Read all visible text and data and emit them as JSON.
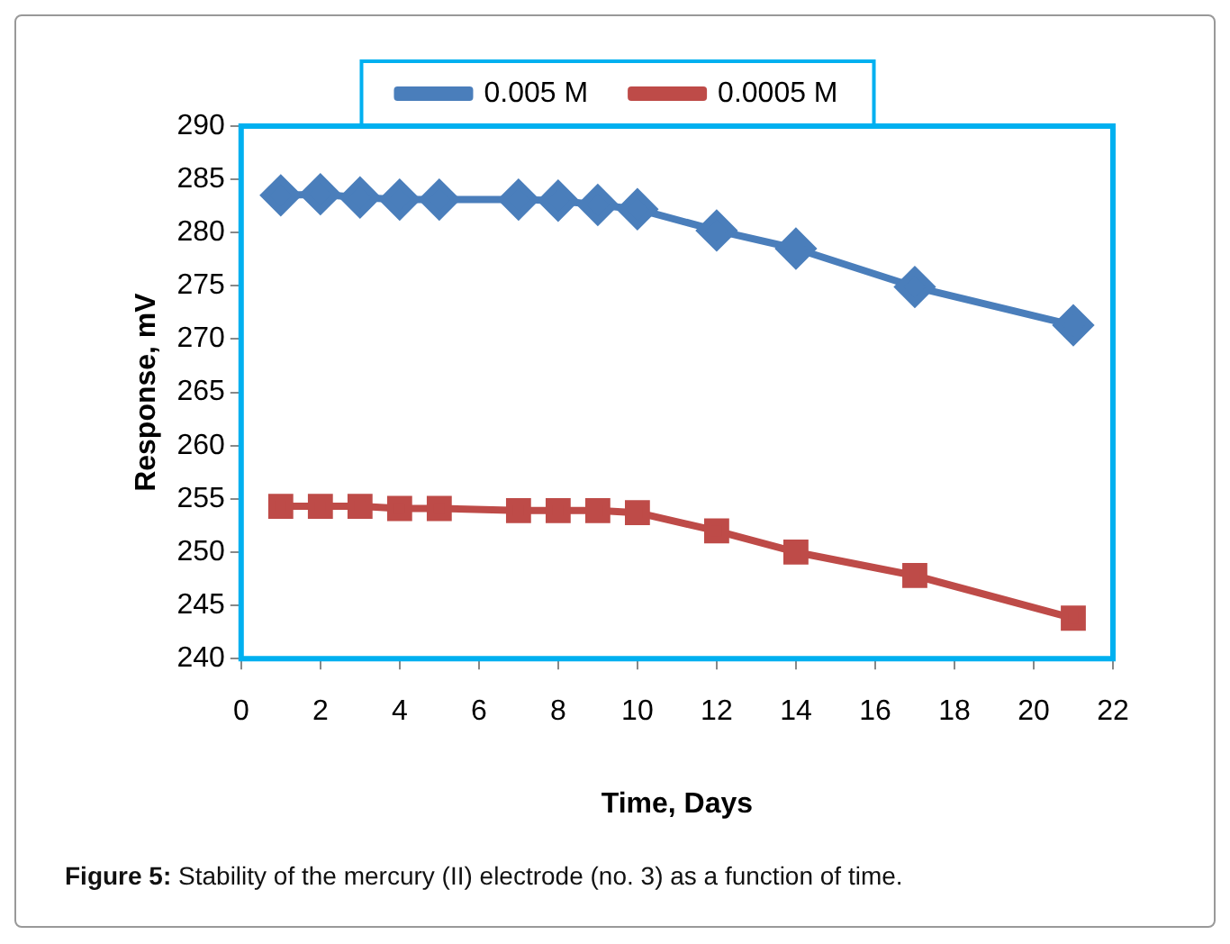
{
  "chart_data": {
    "type": "line",
    "xlabel": "Time, Days",
    "ylabel": "Response, mV",
    "annotations": [
      "Figure 5: Stability of the mercury (II) electrode (no. 3) as a function of time."
    ],
    "x": [
      1,
      2,
      3,
      4,
      5,
      7,
      8,
      9,
      10,
      12,
      14,
      17,
      21
    ],
    "series": [
      {
        "name": "0.005 M",
        "color": "#4a7ebb",
        "marker": "diamond",
        "values": [
          283.5,
          283.6,
          283.3,
          283.1,
          283.1,
          283.1,
          283.0,
          282.6,
          282.2,
          280.2,
          278.5,
          274.9,
          271.3
        ]
      },
      {
        "name": "0.0005 M",
        "color": "#be4b48",
        "marker": "square",
        "values": [
          254.3,
          254.3,
          254.3,
          254.1,
          254.1,
          253.9,
          253.9,
          253.9,
          253.7,
          252.0,
          250.0,
          247.8,
          243.8
        ]
      }
    ],
    "xlim": [
      0,
      22
    ],
    "xticks": [
      0,
      2,
      4,
      6,
      8,
      10,
      12,
      14,
      16,
      18,
      20,
      22
    ],
    "ylim": [
      240,
      290
    ],
    "yticks": [
      240,
      245,
      250,
      255,
      260,
      265,
      270,
      275,
      280,
      285,
      290
    ],
    "grid": false,
    "legend": "top",
    "line_style": "solid"
  }
}
